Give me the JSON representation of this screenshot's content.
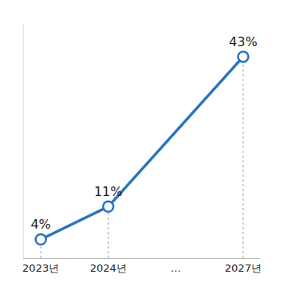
{
  "chart_data": {
    "type": "line",
    "categories": [
      "2023년",
      "2024년",
      "…",
      "2027년"
    ],
    "values": [
      4,
      11,
      null,
      43
    ],
    "value_labels": [
      "4%",
      "11%",
      null,
      "43%"
    ],
    "color": "#2a74bb",
    "ylim": [
      0,
      50
    ],
    "grid": false,
    "data_labels": true,
    "tick_labels": "x",
    "marker": "open_circle",
    "line_style": "solid"
  }
}
